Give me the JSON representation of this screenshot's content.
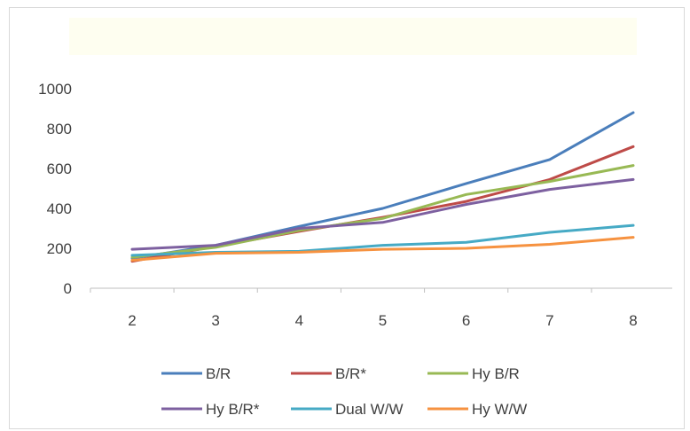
{
  "chart_data": {
    "type": "line",
    "title": "",
    "xlabel": "",
    "ylabel": "",
    "categories": [
      "2",
      "3",
      "4",
      "5",
      "6",
      "7",
      "8"
    ],
    "ylim": [
      0,
      1000
    ],
    "yticks": [
      "0",
      "200",
      "400",
      "600",
      "800",
      "1000"
    ],
    "grid": false,
    "legend_position": "bottom",
    "series": [
      {
        "name": "B/R",
        "color": "#4a7ebb",
        "values": [
          150,
          215,
          310,
          400,
          525,
          645,
          880
        ]
      },
      {
        "name": "B/R*",
        "color": "#be4b48",
        "values": [
          135,
          210,
          285,
          355,
          435,
          545,
          710
        ]
      },
      {
        "name": "Hy B/R",
        "color": "#98b954",
        "values": [
          155,
          205,
          290,
          350,
          470,
          535,
          615
        ]
      },
      {
        "name": "Hy B/R*",
        "color": "#7d60a0",
        "values": [
          195,
          215,
          300,
          330,
          420,
          495,
          545
        ]
      },
      {
        "name": "Dual W/W",
        "color": "#46aac5",
        "values": [
          165,
          180,
          185,
          215,
          230,
          280,
          315
        ]
      },
      {
        "name": "Hy W/W",
        "color": "#f69240",
        "values": [
          140,
          175,
          180,
          195,
          200,
          220,
          255
        ]
      }
    ]
  }
}
